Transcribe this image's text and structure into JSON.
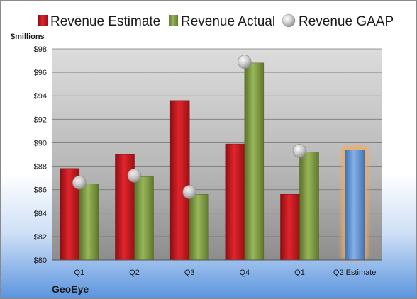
{
  "company": "GeoEye",
  "colors": {
    "estimate": "#c0161c",
    "actual": "#77933c",
    "gaap": "#c8c8c8",
    "highlight_bar": "#5b8fd0",
    "highlight_glow": "#f5a95a"
  },
  "chart_data": {
    "type": "bar",
    "ylabel": "$millions",
    "ylim": [
      80,
      98
    ],
    "yticks": [
      80,
      82,
      84,
      86,
      88,
      90,
      92,
      94,
      96,
      98
    ],
    "ytick_labels": [
      "$80",
      "$82",
      "$84",
      "$86",
      "$88",
      "$90",
      "$92",
      "$94",
      "$96",
      "$98"
    ],
    "grid": true,
    "legend_position": "top",
    "categories": [
      "Q1",
      "Q2",
      "Q3",
      "Q4",
      "Q1",
      "Q2 Estimate"
    ],
    "series": [
      {
        "name": "Revenue Estimate",
        "kind": "bar",
        "values": [
          87.8,
          89.0,
          93.6,
          89.9,
          85.6,
          89.4
        ]
      },
      {
        "name": "Revenue Actual",
        "kind": "bar",
        "values": [
          86.5,
          87.1,
          85.6,
          96.8,
          89.2,
          null
        ]
      },
      {
        "name": "Revenue GAAP",
        "kind": "marker",
        "values": [
          86.6,
          87.2,
          85.8,
          96.9,
          89.3,
          null
        ]
      }
    ],
    "highlighted_category": "Q2 Estimate"
  }
}
